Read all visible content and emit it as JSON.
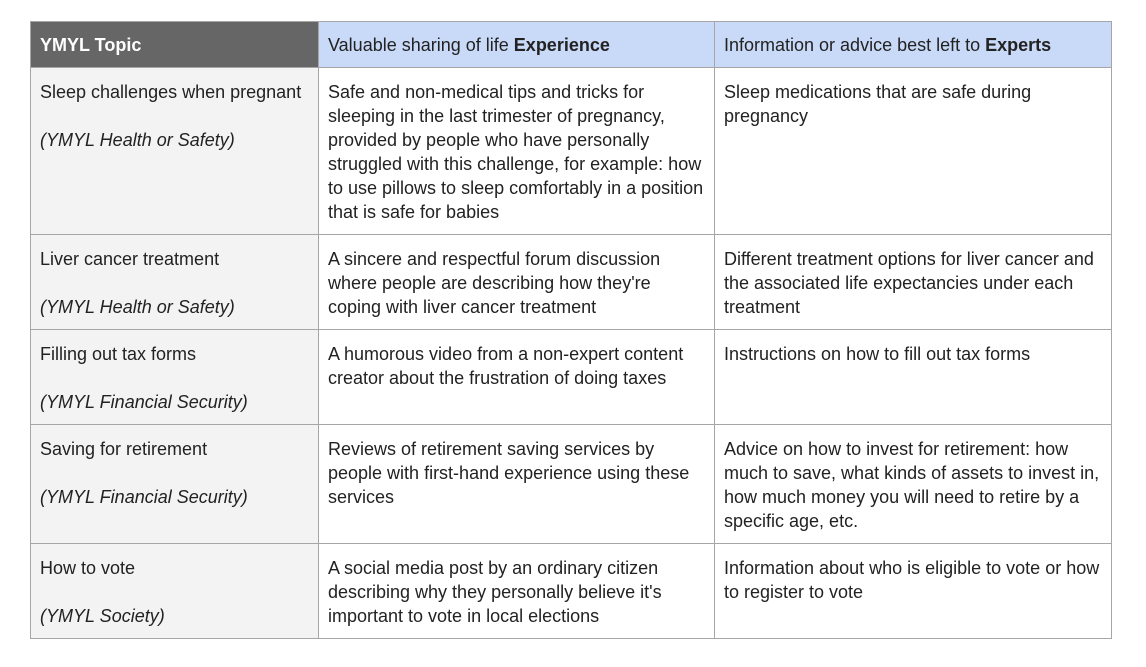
{
  "header": {
    "col1": "YMYL Topic",
    "col2_prefix": "Valuable sharing of life ",
    "col2_bold": "Experience",
    "col3_prefix": "Information or advice best left to ",
    "col3_bold": "Experts"
  },
  "colors": {
    "header_first_bg": "#666666",
    "header_bg": "#c9daf8",
    "first_col_bg": "#f3f3f3",
    "border": "#a6a6a6"
  },
  "rows": [
    {
      "topic": "Sleep challenges when pregnant",
      "category": "(YMYL Health or Safety)",
      "experience": "Safe and non-medical tips and tricks for sleeping in the last trimester of pregnancy, provided by people who have personally struggled with this challenge, for example: how to use pillows to sleep comfortably in a position that is safe for babies",
      "experts": "Sleep medications that are safe during pregnancy"
    },
    {
      "topic": "Liver cancer treatment",
      "category": "(YMYL Health or Safety)",
      "experience": "A sincere and respectful forum discussion where people are describing how they're coping with liver cancer treatment",
      "experts": "Different treatment options for liver cancer and the associated life expectancies under each treatment"
    },
    {
      "topic": "Filling out tax forms",
      "category": "(YMYL Financial Security)",
      "experience": "A humorous video from a non-expert content creator about the frustration of doing taxes",
      "experts": "Instructions on how to fill out tax forms"
    },
    {
      "topic": "Saving for retirement",
      "category": "(YMYL Financial Security)",
      "experience": "Reviews of retirement saving services by people with first-hand experience using these services",
      "experts": "Advice on how to invest for retirement: how much to save, what kinds of assets to invest in, how much money you will need to retire by a specific age, etc."
    },
    {
      "topic": "How to vote",
      "category": "(YMYL Society)",
      "experience": "A social media post by an ordinary citizen describing why they personally believe it's important to vote in local elections",
      "experts": "Information about who is eligible to vote or how to register to vote"
    }
  ]
}
